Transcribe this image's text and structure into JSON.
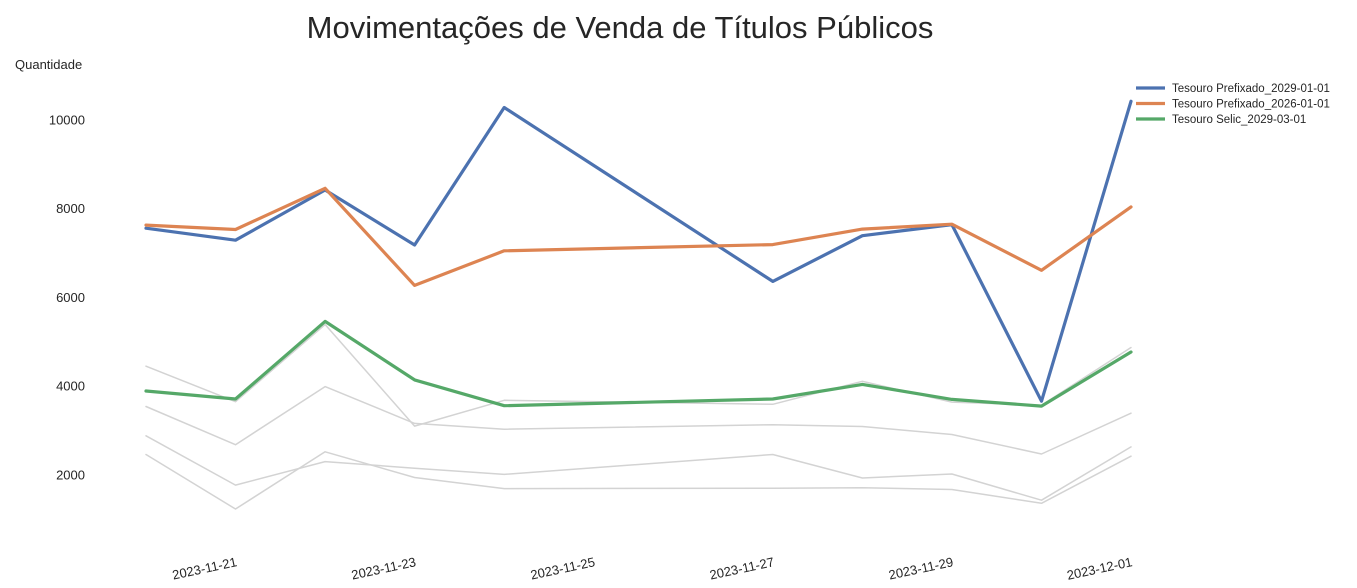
{
  "chart_data": {
    "type": "line",
    "title": "Movimentações de Venda de Títulos Públicos",
    "xlabel": "",
    "ylabel": "Quantidade",
    "x": [
      "2023-11-20",
      "2023-11-21",
      "2023-11-22",
      "2023-11-23",
      "2023-11-24",
      "2023-11-27",
      "2023-11-28",
      "2023-11-29",
      "2023-11-30",
      "2023-12-01"
    ],
    "x_ticks": [
      "2023-11-21",
      "2023-11-23",
      "2023-11-25",
      "2023-11-27",
      "2023-11-29",
      "2023-12-01"
    ],
    "y_ticks": [
      2000,
      4000,
      6000,
      8000,
      10000
    ],
    "ylim": [
      700,
      11000
    ],
    "xlim": [
      "2023-11-20",
      "2023-12-01"
    ],
    "grid": false,
    "legend_position": "top-right",
    "series": [
      {
        "name": "Tesouro Prefixado_2029-01-01",
        "color": "#4c72b0",
        "highlight": true,
        "values": [
          7570,
          7300,
          8430,
          7190,
          10290,
          6370,
          7400,
          7650,
          3670,
          10430
        ]
      },
      {
        "name": "Tesouro Prefixado_2026-01-01",
        "color": "#dd8452",
        "highlight": true,
        "values": [
          7640,
          7540,
          8470,
          6280,
          7060,
          7200,
          7550,
          7660,
          6620,
          8050
        ]
      },
      {
        "name": "Tesouro Selic_2029-03-01",
        "color": "#55a868",
        "highlight": true,
        "values": [
          3900,
          3720,
          5470,
          4150,
          3570,
          3720,
          4050,
          3710,
          3560,
          4780
        ]
      },
      {
        "values": [
          4460,
          3660,
          5400,
          3110,
          3690,
          3600,
          4120,
          3650,
          3580,
          4880
        ],
        "color": "#d3d3d3",
        "highlight": false
      },
      {
        "values": [
          3550,
          2690,
          4000,
          3170,
          3040,
          3140,
          3100,
          2920,
          2480,
          3400
        ]
      },
      {
        "values": [
          2890,
          1780,
          2310,
          2160,
          2020,
          2470,
          1940,
          2030,
          1440,
          2640
        ]
      },
      {
        "values": [
          2470,
          1240,
          2530,
          1950,
          1700,
          1710,
          1720,
          1680,
          1370,
          2430
        ]
      }
    ]
  }
}
